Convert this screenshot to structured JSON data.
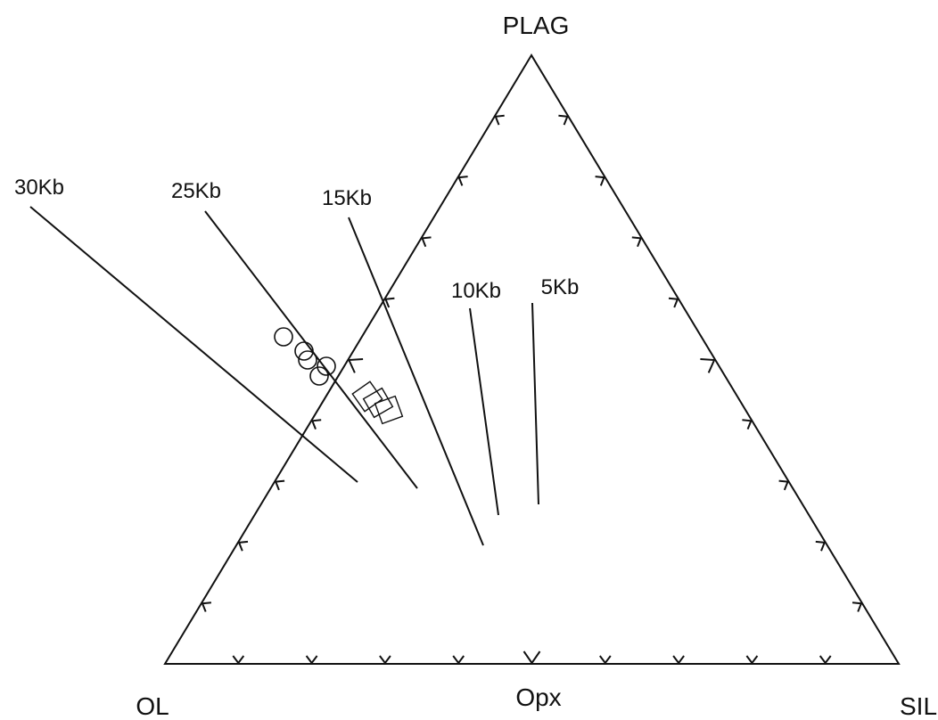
{
  "vertices": {
    "top": "PLAG",
    "bottom_left": "OL",
    "bottom_right": "SIL"
  },
  "edge_labels": {
    "bottom_mid": "Opx"
  },
  "isobars": [
    {
      "id": "30kb",
      "label": "30Kb"
    },
    {
      "id": "25kb",
      "label": "25Kb"
    },
    {
      "id": "15kb",
      "label": "15Kb"
    },
    {
      "id": "10kb",
      "label": "10Kb"
    },
    {
      "id": "5kb",
      "label": "5Kb"
    }
  ],
  "symbols": {
    "circles_count": 5,
    "squares_count": 3
  },
  "colors": {
    "ink": "#111111",
    "background": "#ffffff"
  }
}
